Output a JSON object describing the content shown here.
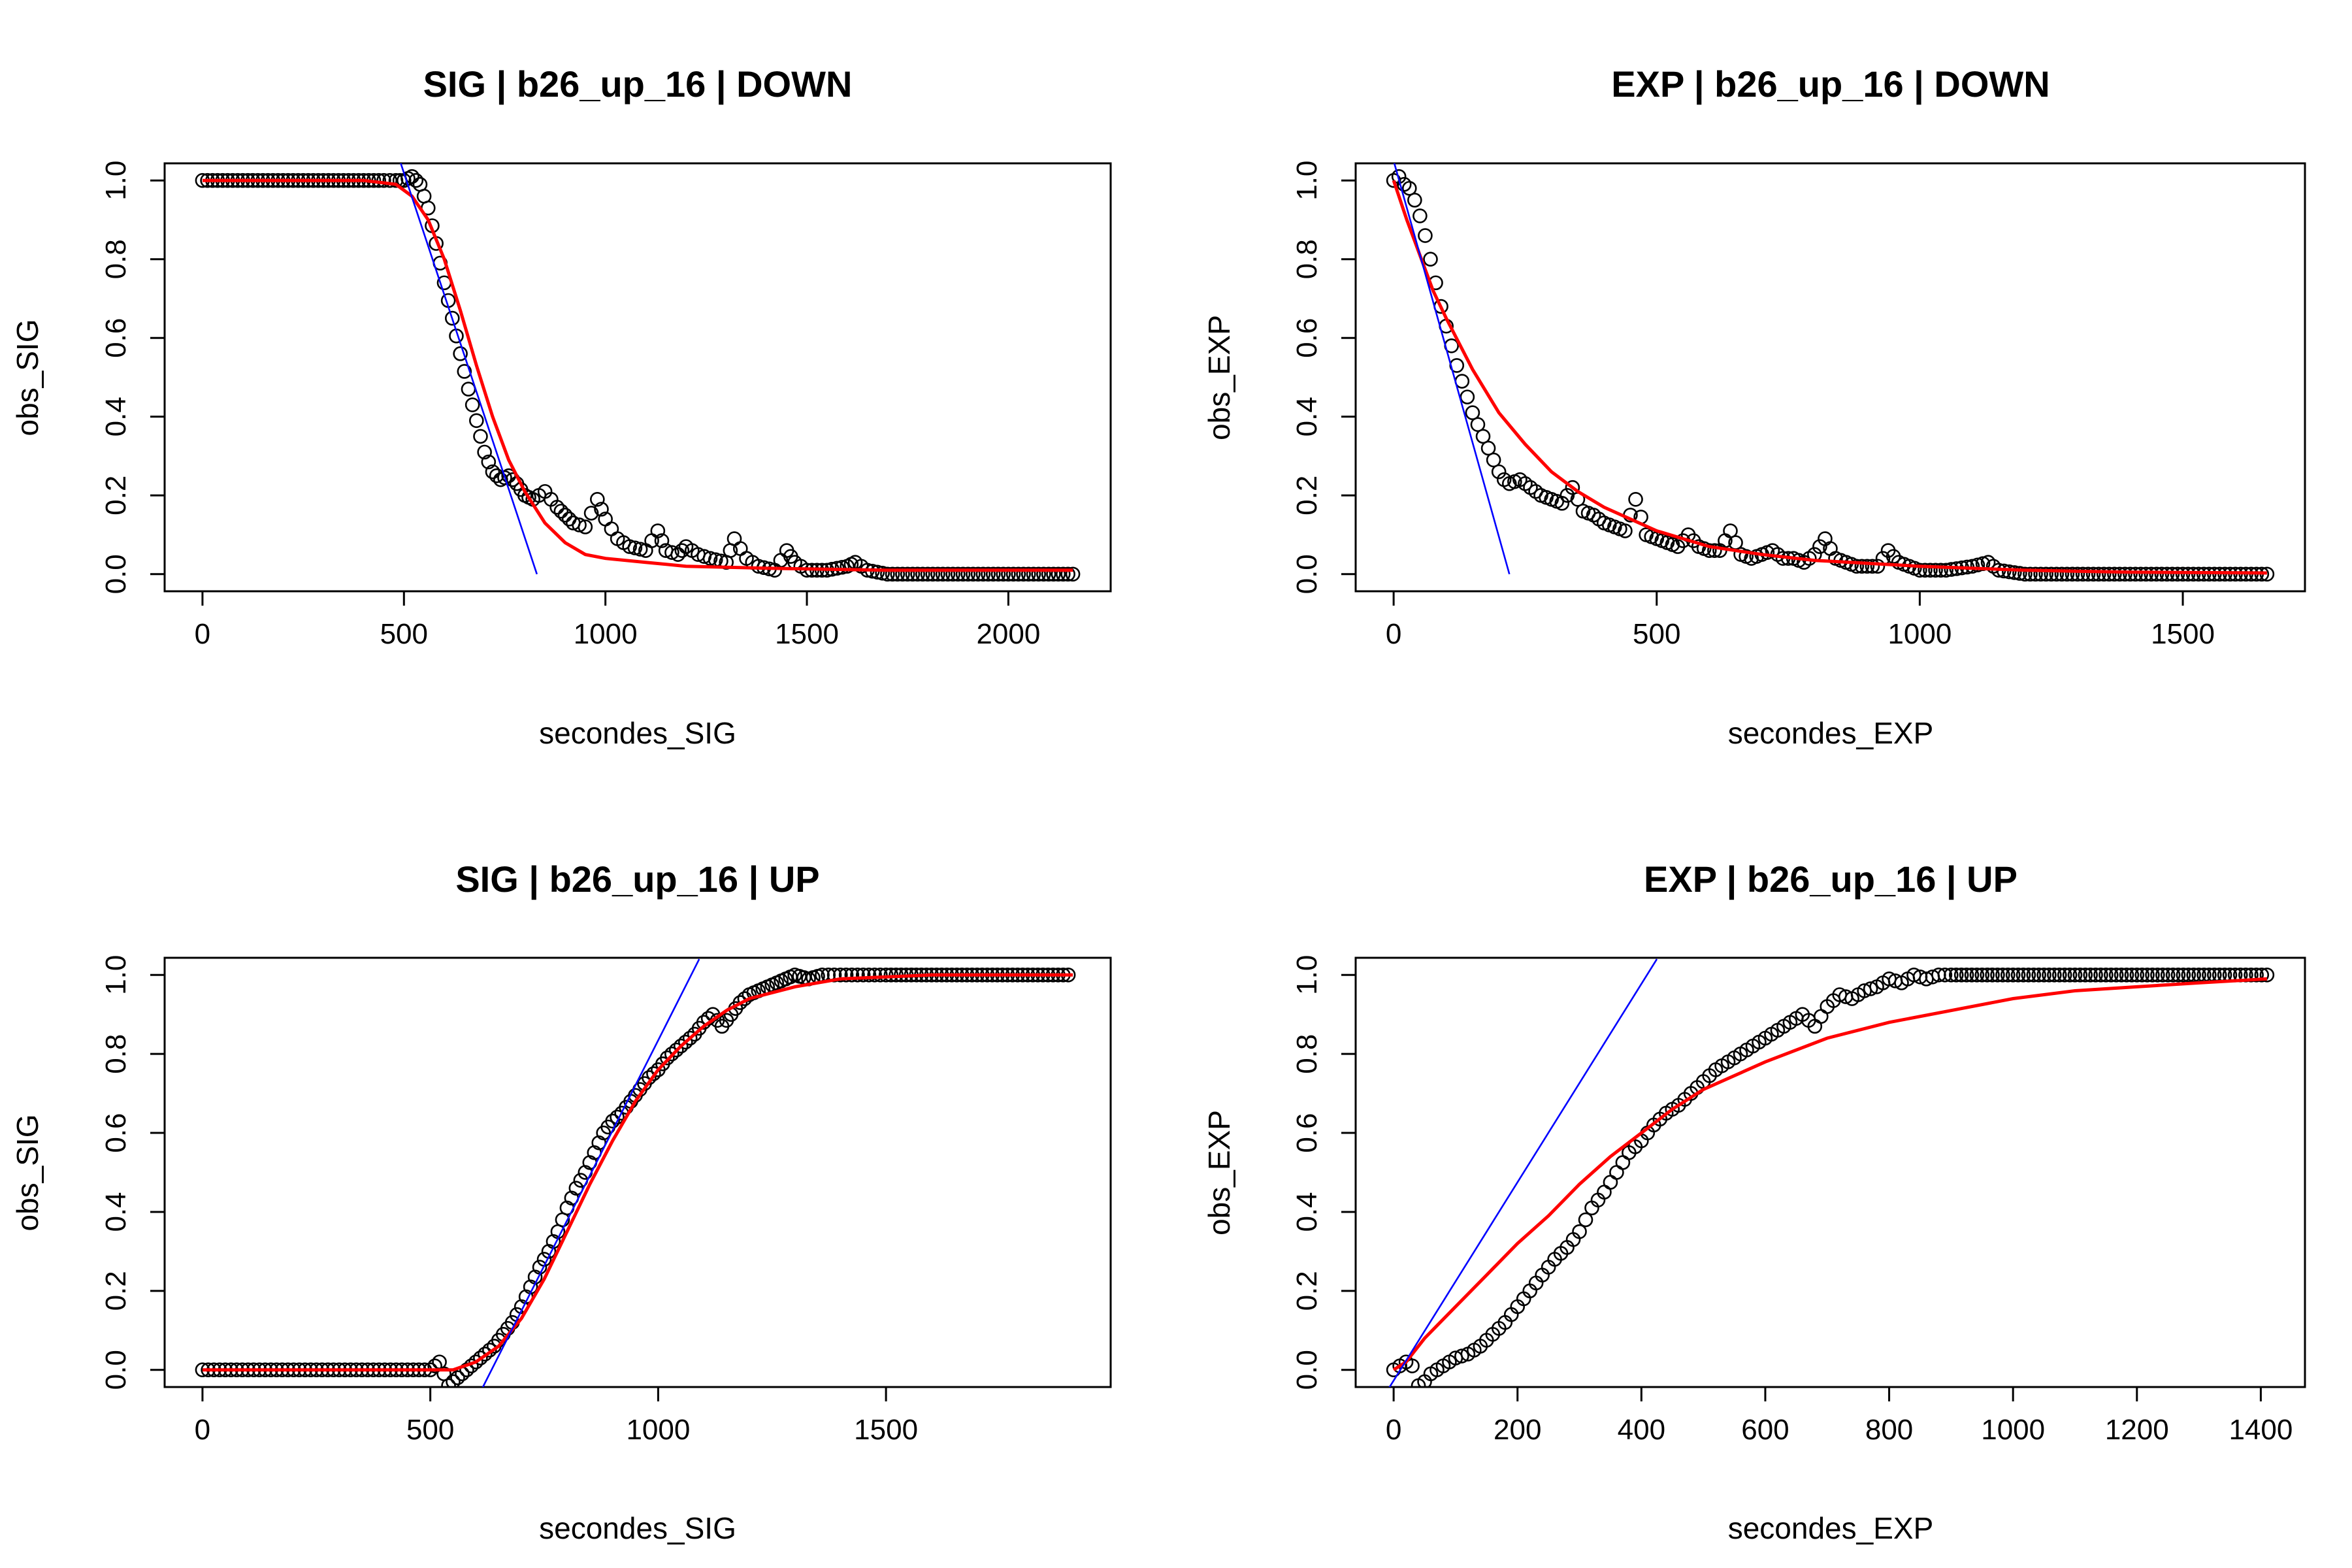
{
  "colors": {
    "points": "#000000",
    "fit": "#ff0000",
    "tangent": "#0000ff",
    "background": "#ffffff"
  },
  "chart_data": [
    {
      "type": "scatter",
      "title": "SIG |  b26_up_16 | DOWN",
      "xlabel": "secondes_SIG",
      "ylabel": "obs_SIG",
      "xlim": [
        0,
        2160
      ],
      "ylim": [
        0.0,
        1.0
      ],
      "xticks": [
        "0",
        "500",
        "1000",
        "1500",
        "2000"
      ],
      "yticks": [
        "0.0",
        "0.2",
        "0.4",
        "0.6",
        "0.8",
        "1.0"
      ],
      "series": [
        {
          "role": "points",
          "x": [
            0,
            50,
            100,
            150,
            200,
            250,
            300,
            350,
            400,
            450,
            480,
            500,
            520,
            540,
            560,
            580,
            600,
            620,
            640,
            660,
            680,
            700,
            720,
            740,
            760,
            780,
            800,
            820,
            850,
            880,
            900,
            920,
            950,
            980,
            1000,
            1030,
            1060,
            1100,
            1130,
            1150,
            1180,
            1200,
            1230,
            1260,
            1300,
            1320,
            1350,
            1380,
            1420,
            1450,
            1470,
            1500,
            1550,
            1600,
            1620,
            1650,
            1700,
            1750,
            1800,
            1900,
            2000,
            2100,
            2160
          ],
          "y": [
            1.0,
            1.0,
            1.0,
            1.0,
            1.0,
            1.0,
            1.0,
            1.0,
            1.0,
            1.0,
            1.0,
            1.0,
            1.01,
            0.99,
            0.93,
            0.84,
            0.74,
            0.65,
            0.56,
            0.47,
            0.39,
            0.31,
            0.26,
            0.24,
            0.25,
            0.23,
            0.2,
            0.19,
            0.21,
            0.17,
            0.15,
            0.13,
            0.12,
            0.19,
            0.14,
            0.09,
            0.07,
            0.06,
            0.11,
            0.06,
            0.05,
            0.07,
            0.05,
            0.04,
            0.03,
            0.09,
            0.04,
            0.02,
            0.01,
            0.06,
            0.03,
            0.01,
            0.01,
            0.02,
            0.03,
            0.01,
            0.0,
            0.0,
            0.0,
            0.0,
            0.0,
            0.0,
            0.0
          ]
        },
        {
          "role": "fit",
          "x": [
            0,
            400,
            480,
            520,
            560,
            600,
            640,
            680,
            720,
            760,
            800,
            850,
            900,
            950,
            1000,
            1100,
            1200,
            1400,
            1700,
            2160
          ],
          "y": [
            1.0,
            1.0,
            0.99,
            0.96,
            0.9,
            0.8,
            0.67,
            0.53,
            0.4,
            0.29,
            0.21,
            0.13,
            0.08,
            0.05,
            0.04,
            0.03,
            0.02,
            0.015,
            0.01,
            0.01
          ]
        },
        {
          "role": "tangent",
          "x": [
            490,
            830
          ],
          "y": [
            1.05,
            0.0
          ]
        }
      ]
    },
    {
      "type": "scatter",
      "title": "EXP |  b26_up_16 | DOWN",
      "xlabel": "secondes_EXP",
      "ylabel": "obs_EXP",
      "xlim": [
        0,
        1660
      ],
      "ylim": [
        0.0,
        1.0
      ],
      "xticks": [
        "0",
        "500",
        "1000",
        "1500"
      ],
      "yticks": [
        "0.0",
        "0.2",
        "0.4",
        "0.6",
        "0.8",
        "1.0"
      ],
      "series": [
        {
          "role": "points",
          "x": [
            0,
            10,
            20,
            30,
            40,
            50,
            60,
            70,
            80,
            90,
            100,
            110,
            120,
            130,
            140,
            150,
            160,
            170,
            180,
            190,
            200,
            210,
            220,
            240,
            260,
            280,
            300,
            320,
            340,
            360,
            380,
            400,
            420,
            440,
            460,
            480,
            500,
            520,
            540,
            560,
            580,
            600,
            620,
            640,
            660,
            680,
            700,
            720,
            740,
            760,
            780,
            800,
            820,
            840,
            860,
            880,
            900,
            920,
            940,
            960,
            980,
            1000,
            1050,
            1100,
            1130,
            1150,
            1200,
            1300,
            1400,
            1500,
            1600,
            1660
          ],
          "y": [
            1.0,
            1.01,
            0.99,
            0.98,
            0.95,
            0.91,
            0.86,
            0.8,
            0.74,
            0.68,
            0.63,
            0.58,
            0.53,
            0.49,
            0.45,
            0.41,
            0.38,
            0.35,
            0.32,
            0.29,
            0.26,
            0.24,
            0.23,
            0.24,
            0.22,
            0.2,
            0.19,
            0.18,
            0.22,
            0.16,
            0.15,
            0.13,
            0.12,
            0.11,
            0.19,
            0.1,
            0.09,
            0.08,
            0.07,
            0.1,
            0.07,
            0.06,
            0.06,
            0.11,
            0.05,
            0.04,
            0.05,
            0.06,
            0.04,
            0.04,
            0.03,
            0.05,
            0.09,
            0.04,
            0.03,
            0.02,
            0.02,
            0.02,
            0.06,
            0.03,
            0.02,
            0.01,
            0.01,
            0.02,
            0.03,
            0.01,
            0.0,
            0.0,
            0.0,
            0.0,
            0.0,
            0.0
          ]
        },
        {
          "role": "fit",
          "x": [
            0,
            25,
            50,
            75,
            100,
            150,
            200,
            250,
            300,
            350,
            400,
            500,
            600,
            700,
            800,
            1000,
            1200,
            1400,
            1660
          ],
          "y": [
            1.0,
            0.9,
            0.81,
            0.72,
            0.65,
            0.52,
            0.41,
            0.33,
            0.26,
            0.21,
            0.17,
            0.11,
            0.07,
            0.05,
            0.035,
            0.02,
            0.01,
            0.005,
            0.003
          ]
        },
        {
          "role": "tangent",
          "x": [
            0,
            220
          ],
          "y": [
            1.05,
            0.0
          ]
        }
      ]
    },
    {
      "type": "scatter",
      "title": "SIG |  b26_up_16 | UP",
      "xlabel": "secondes_SIG",
      "ylabel": "obs_SIG",
      "xlim": [
        0,
        1910
      ],
      "ylim": [
        0.0,
        1.0
      ],
      "xticks": [
        "0",
        "500",
        "1000",
        "1500"
      ],
      "yticks": [
        "0.0",
        "0.2",
        "0.4",
        "0.6",
        "0.8",
        "1.0"
      ],
      "series": [
        {
          "role": "points",
          "x": [
            0,
            50,
            100,
            150,
            200,
            250,
            300,
            350,
            400,
            450,
            500,
            510,
            520,
            530,
            540,
            550,
            560,
            580,
            600,
            620,
            640,
            660,
            680,
            700,
            720,
            740,
            760,
            780,
            800,
            820,
            840,
            860,
            880,
            900,
            920,
            940,
            960,
            980,
            1000,
            1020,
            1040,
            1060,
            1080,
            1100,
            1120,
            1140,
            1160,
            1180,
            1200,
            1220,
            1240,
            1260,
            1280,
            1300,
            1330,
            1360,
            1400,
            1450,
            1500,
            1600,
            1700,
            1800,
            1900
          ],
          "y": [
            0.0,
            0.0,
            0.0,
            0.0,
            0.0,
            0.0,
            0.0,
            0.0,
            0.0,
            0.0,
            0.0,
            0.01,
            0.02,
            -0.01,
            -0.04,
            -0.03,
            -0.02,
            0.0,
            0.02,
            0.04,
            0.06,
            0.09,
            0.12,
            0.16,
            0.21,
            0.26,
            0.3,
            0.35,
            0.41,
            0.46,
            0.5,
            0.55,
            0.6,
            0.63,
            0.65,
            0.68,
            0.71,
            0.74,
            0.76,
            0.79,
            0.81,
            0.83,
            0.85,
            0.88,
            0.9,
            0.87,
            0.9,
            0.93,
            0.95,
            0.96,
            0.97,
            0.98,
            0.99,
            1.0,
            0.99,
            1.0,
            1.0,
            1.0,
            1.0,
            1.0,
            1.0,
            1.0,
            1.0
          ]
        },
        {
          "role": "fit",
          "x": [
            0,
            500,
            550,
            600,
            650,
            700,
            750,
            800,
            850,
            900,
            950,
            1000,
            1050,
            1100,
            1150,
            1200,
            1300,
            1400,
            1600,
            1910
          ],
          "y": [
            0.0,
            0.0,
            0.0,
            0.02,
            0.06,
            0.13,
            0.23,
            0.35,
            0.47,
            0.58,
            0.68,
            0.76,
            0.82,
            0.87,
            0.91,
            0.94,
            0.97,
            0.99,
            1.0,
            1.0
          ]
        },
        {
          "role": "tangent",
          "x": [
            595,
            1090
          ],
          "y": [
            -0.09,
            1.04
          ]
        }
      ]
    },
    {
      "type": "scatter",
      "title": "EXP |  b26_up_16 | UP",
      "xlabel": "secondes_EXP",
      "ylabel": "obs_EXP",
      "xlim": [
        0,
        1410
      ],
      "ylim": [
        0.0,
        1.0
      ],
      "xticks": [
        "0",
        "200",
        "400",
        "600",
        "800",
        "1000",
        "1200",
        "1400"
      ],
      "yticks": [
        "0.0",
        "0.2",
        "0.4",
        "0.6",
        "0.8",
        "1.0"
      ],
      "series": [
        {
          "role": "points",
          "x": [
            0,
            10,
            20,
            30,
            40,
            50,
            60,
            70,
            80,
            90,
            100,
            120,
            140,
            160,
            180,
            200,
            220,
            240,
            260,
            280,
            300,
            320,
            340,
            360,
            380,
            400,
            420,
            440,
            460,
            480,
            500,
            520,
            540,
            560,
            580,
            600,
            620,
            640,
            660,
            680,
            700,
            720,
            740,
            760,
            780,
            800,
            820,
            840,
            860,
            880,
            900,
            950,
            1000,
            1050,
            1100,
            1150,
            1200,
            1250,
            1300,
            1350,
            1410
          ],
          "y": [
            0.0,
            0.01,
            0.02,
            0.01,
            -0.04,
            -0.03,
            -0.01,
            0.0,
            0.01,
            0.02,
            0.03,
            0.04,
            0.06,
            0.09,
            0.12,
            0.16,
            0.2,
            0.24,
            0.28,
            0.31,
            0.35,
            0.41,
            0.45,
            0.5,
            0.55,
            0.58,
            0.62,
            0.65,
            0.67,
            0.7,
            0.73,
            0.76,
            0.78,
            0.8,
            0.82,
            0.84,
            0.86,
            0.88,
            0.9,
            0.87,
            0.92,
            0.95,
            0.94,
            0.96,
            0.97,
            0.99,
            0.98,
            1.0,
            0.99,
            1.0,
            1.0,
            1.0,
            1.0,
            1.0,
            1.0,
            1.0,
            1.0,
            1.0,
            1.0,
            1.0,
            1.0
          ]
        },
        {
          "role": "fit",
          "x": [
            0,
            20,
            50,
            100,
            150,
            200,
            250,
            300,
            350,
            400,
            450,
            500,
            600,
            700,
            800,
            900,
            1000,
            1100,
            1200,
            1300,
            1410
          ],
          "y": [
            0.0,
            0.02,
            0.08,
            0.16,
            0.24,
            0.32,
            0.39,
            0.47,
            0.54,
            0.6,
            0.66,
            0.71,
            0.78,
            0.84,
            0.88,
            0.91,
            0.94,
            0.96,
            0.97,
            0.98,
            0.99
          ]
        },
        {
          "role": "tangent",
          "x": [
            -25,
            425
          ],
          "y": [
            -0.09,
            1.04
          ]
        }
      ]
    }
  ]
}
